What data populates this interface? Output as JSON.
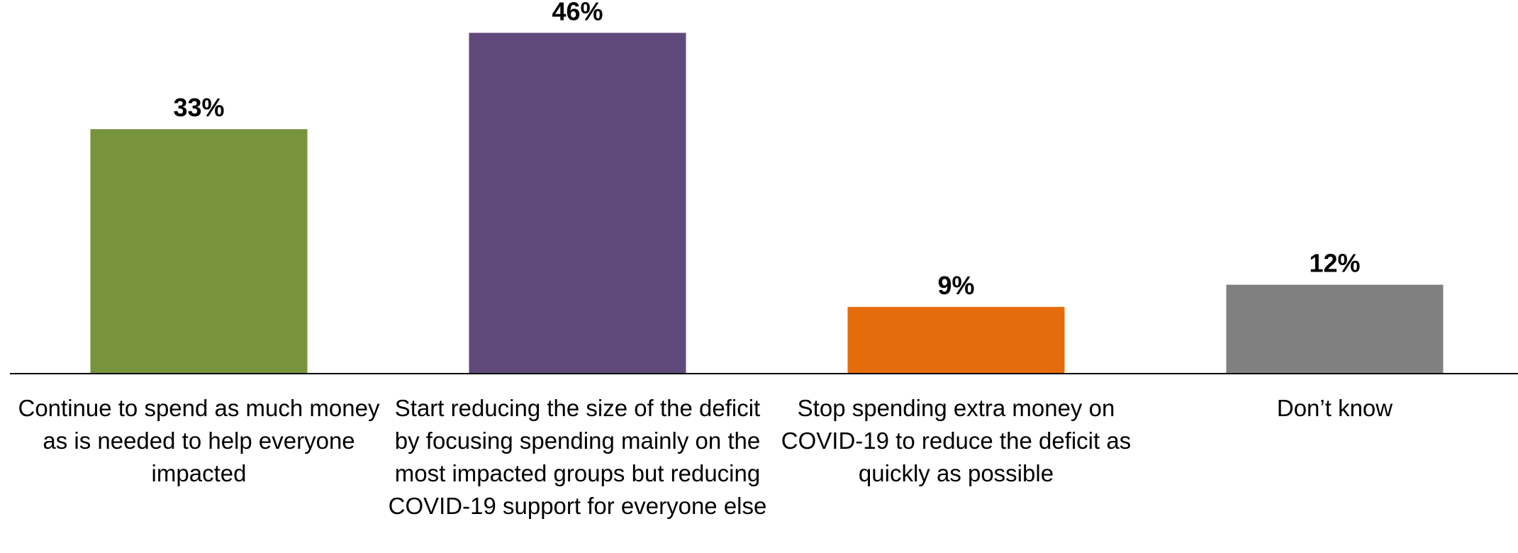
{
  "chart_data": {
    "type": "bar",
    "categories": [
      "Continue to spend as much money as is needed to help everyone impacted",
      "Start reducing the size of the deficit by focusing spending mainly on the most impacted groups but reducing COVID-19 support for everyone else",
      "Stop spending extra money on COVID-19 to reduce the deficit as quickly as possible",
      "Don’t know"
    ],
    "values": [
      33,
      46,
      9,
      12
    ],
    "data_labels": [
      "33%",
      "46%",
      "9%",
      "12%"
    ],
    "colors": [
      "#77933C",
      "#604A7B",
      "#E46C0A",
      "#808080"
    ],
    "title": "",
    "xlabel": "",
    "ylabel": "",
    "ylim": [
      0,
      50
    ],
    "grid": false,
    "legend": "none"
  }
}
